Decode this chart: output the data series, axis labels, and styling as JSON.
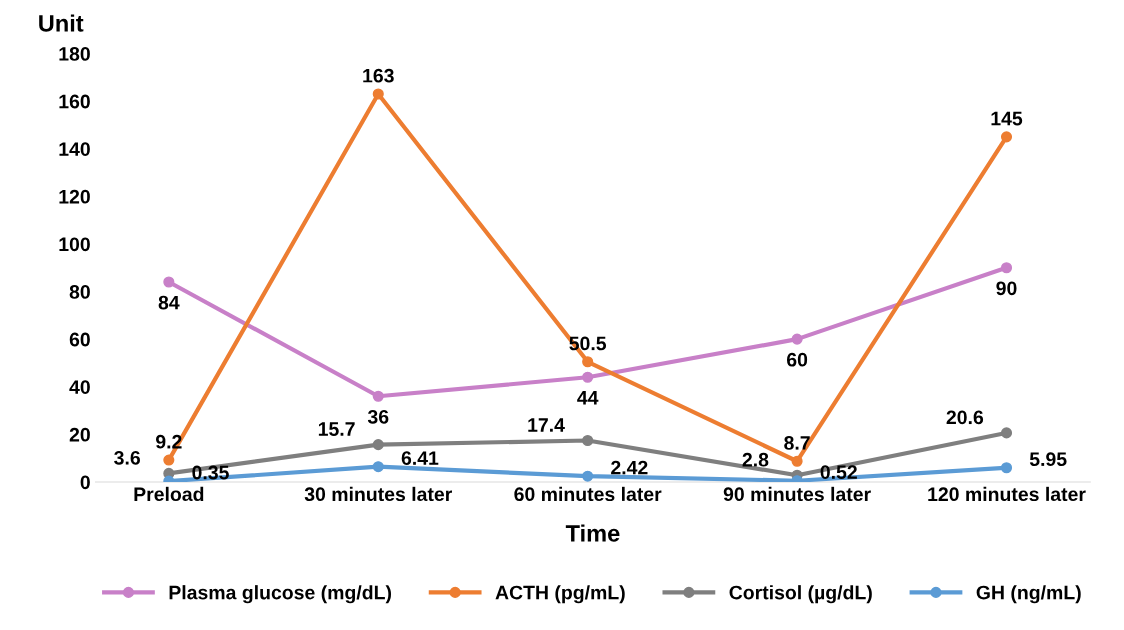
{
  "chart_data": {
    "type": "line",
    "xlabel": "Time",
    "ylabel": "Unit",
    "categories": [
      "Preload",
      "30 minutes later",
      "60 minutes later",
      "90 minutes later",
      "120 minutes later"
    ],
    "series": [
      {
        "name": "Plasma glucose (mg/dL)",
        "color": "#c880c8",
        "values": [
          84,
          36,
          44,
          60,
          90
        ]
      },
      {
        "name": "ACTH (pg/mL)",
        "color": "#ed7d31",
        "values": [
          9.2,
          163,
          50.5,
          8.7,
          145
        ]
      },
      {
        "name": "Cortisol (µg/dL)",
        "color": "#7f7f7f",
        "values": [
          3.6,
          15.7,
          17.4,
          2.8,
          20.6
        ]
      },
      {
        "name": "GH (ng/mL)",
        "color": "#5b9bd5",
        "values": [
          0.35,
          6.41,
          2.42,
          0.52,
          5.95
        ]
      }
    ],
    "ylim": [
      0,
      180
    ],
    "yticks": [
      0,
      20,
      40,
      60,
      80,
      100,
      120,
      140,
      160,
      180
    ],
    "grid": false,
    "legend": "bottom",
    "marker": "circle",
    "line_style": "solid",
    "data_labels": true
  }
}
